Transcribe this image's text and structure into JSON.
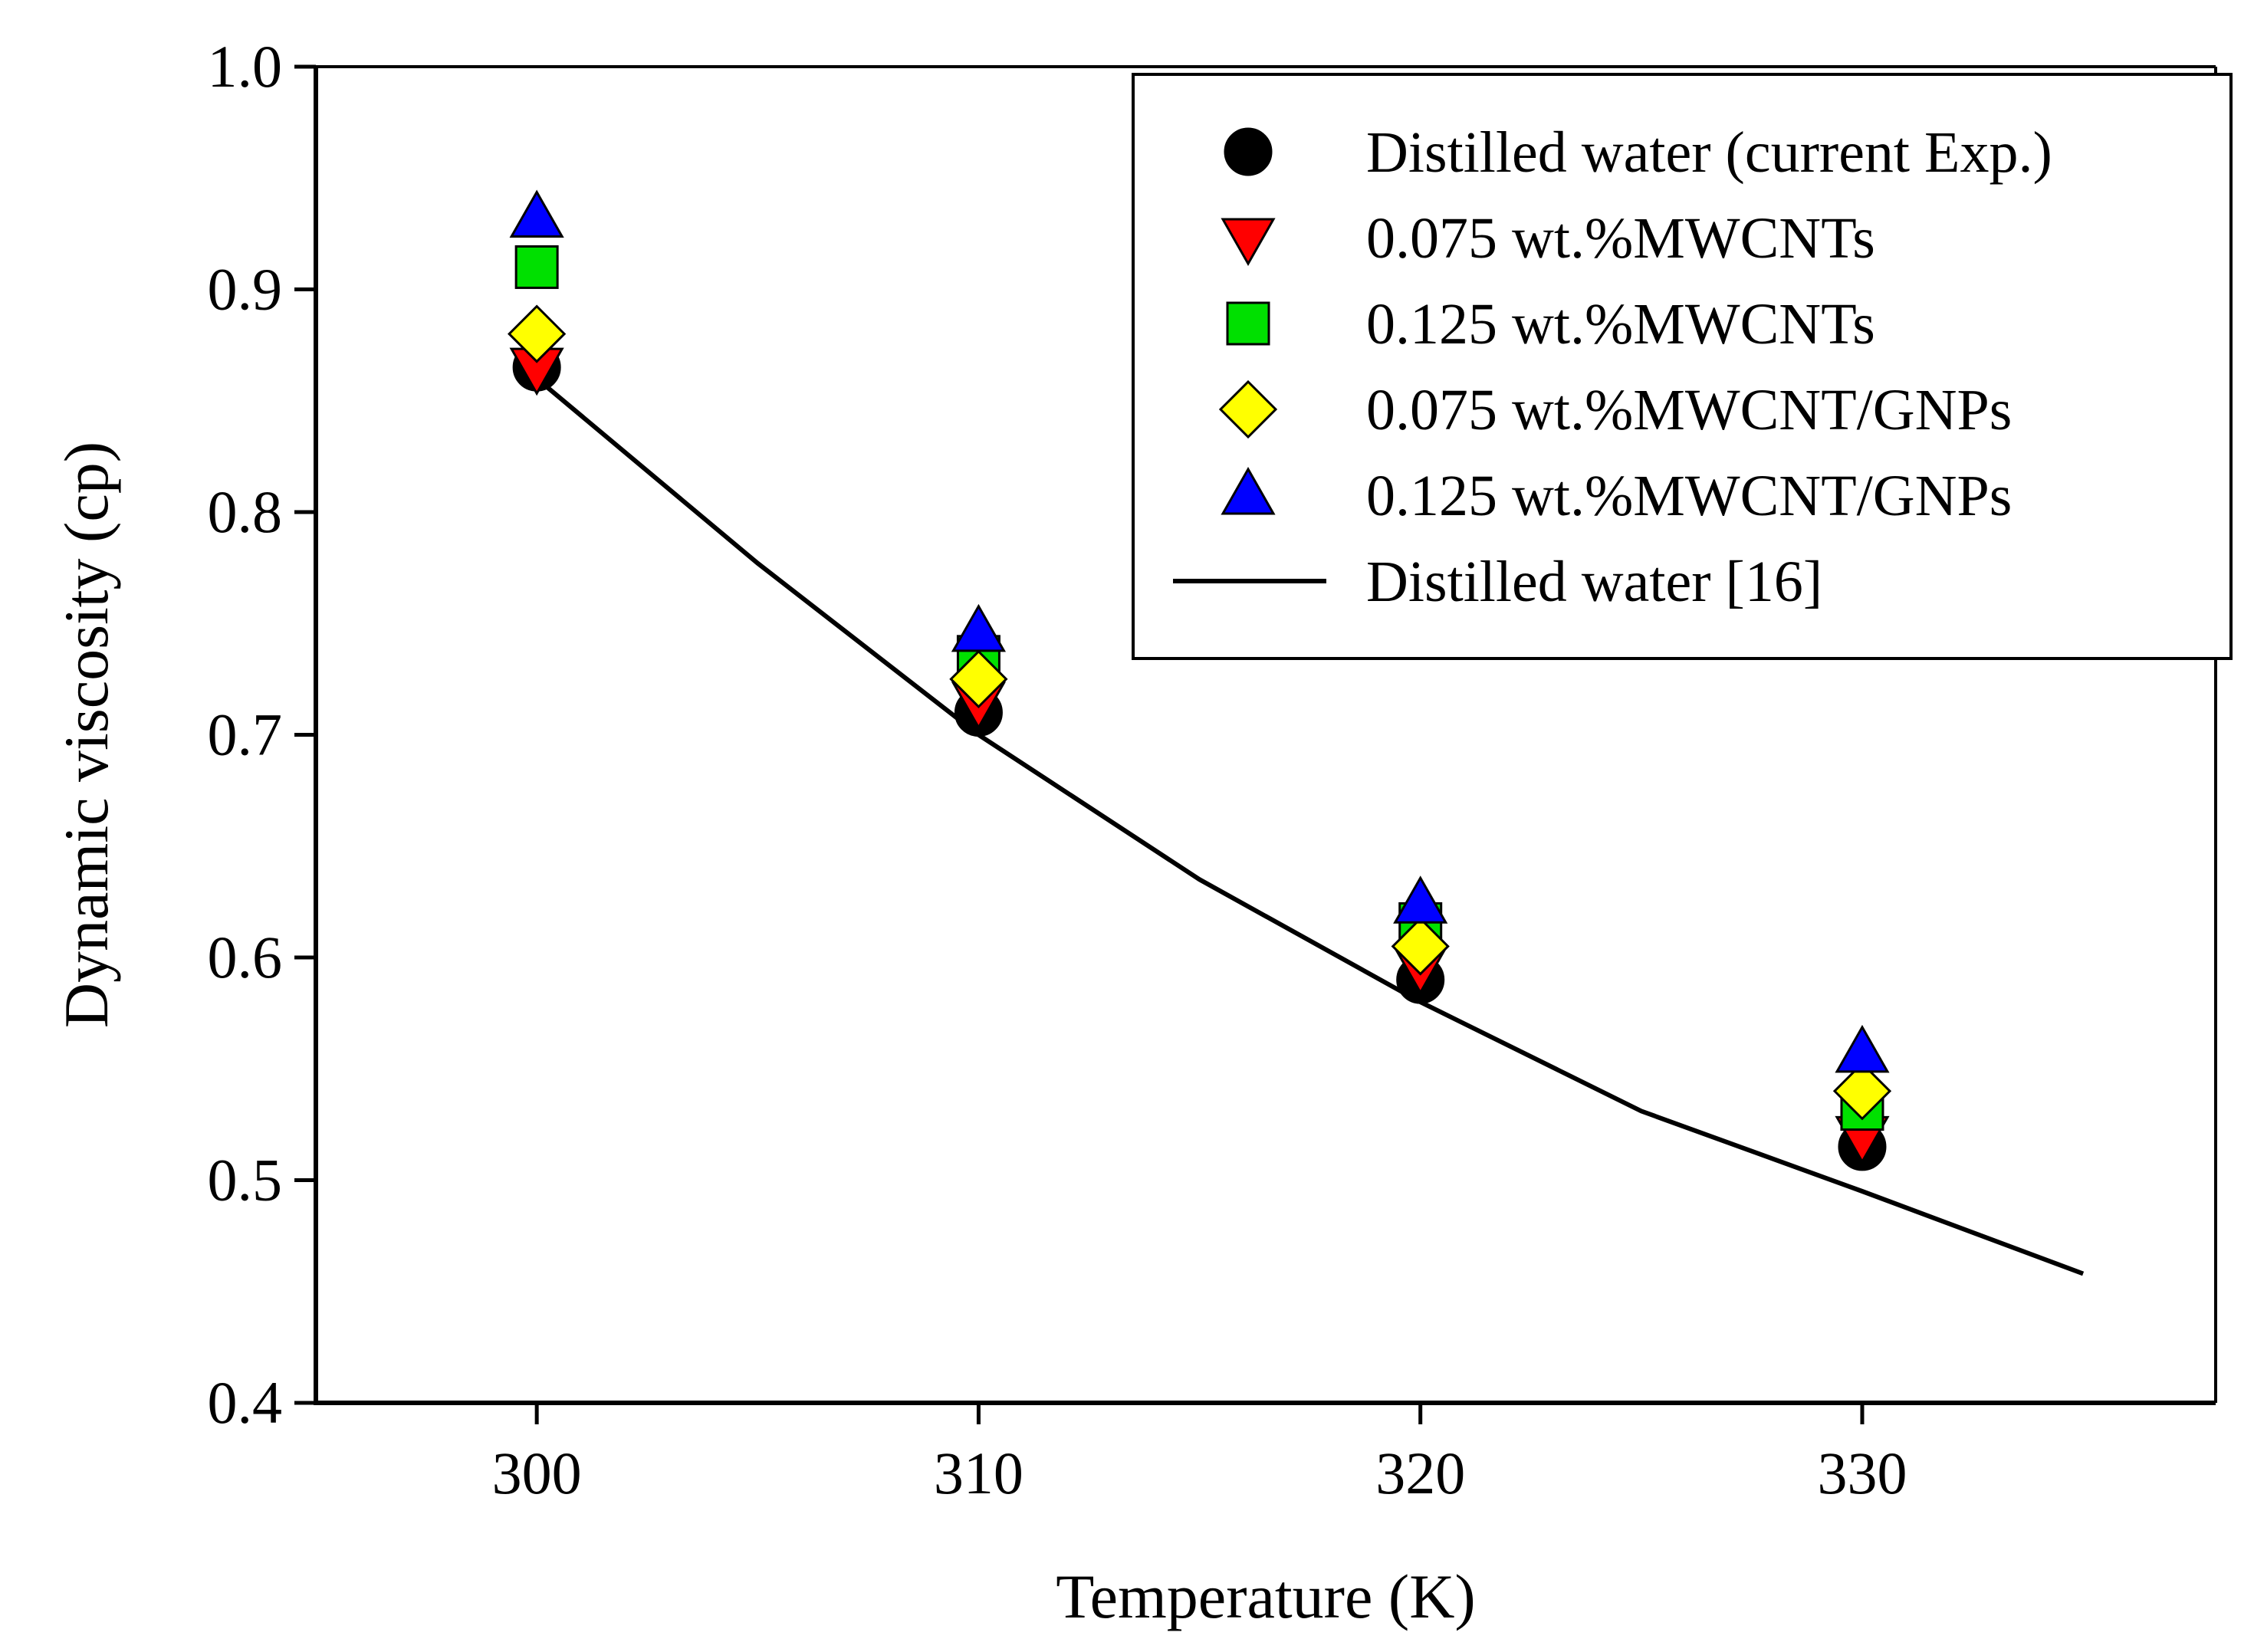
{
  "chart_data": {
    "type": "scatter",
    "title": "",
    "xlabel": "Temperature (K)",
    "ylabel": "Dynamic viscosity (cp)",
    "xlim": [
      295,
      338
    ],
    "ylim": [
      0.4,
      1.0
    ],
    "x_ticks": [
      300,
      310,
      320,
      330
    ],
    "x_tick_labels": [
      "300",
      "310",
      "320",
      "330"
    ],
    "y_ticks": [
      0.4,
      0.5,
      0.6,
      0.7,
      0.8,
      0.9,
      1.0
    ],
    "y_tick_labels": [
      "0.4",
      "0.5",
      "0.6",
      "0.7",
      "0.8",
      "0.9",
      "1.0"
    ],
    "grid": false,
    "legend_position": "top-right",
    "series": [
      {
        "name": "Distilled water (current Exp.)",
        "marker": "circle",
        "color": "#000000",
        "points": [
          [
            300,
            0.865
          ],
          [
            310,
            0.71
          ],
          [
            320,
            0.59
          ],
          [
            330,
            0.515
          ]
        ]
      },
      {
        "name": "0.075 wt.%MWCNTs",
        "marker": "triangle-down",
        "color": "#ff0000",
        "points": [
          [
            300,
            0.865
          ],
          [
            310,
            0.715
          ],
          [
            320,
            0.596
          ],
          [
            330,
            0.52
          ]
        ]
      },
      {
        "name": "0.125 wt.%MWCNTs",
        "marker": "square",
        "color": "#00e000",
        "points": [
          [
            300,
            0.91
          ],
          [
            310,
            0.735
          ],
          [
            320,
            0.615
          ],
          [
            330,
            0.532
          ]
        ]
      },
      {
        "name": "0.075 wt.%MWCNT/GNPs",
        "marker": "diamond",
        "color": "#ffff00",
        "points": [
          [
            300,
            0.88
          ],
          [
            310,
            0.725
          ],
          [
            320,
            0.605
          ],
          [
            330,
            0.54
          ]
        ]
      },
      {
        "name": "0.125 wt.%MWCNT/GNPs",
        "marker": "triangle-up",
        "color": "#0000ff",
        "points": [
          [
            300,
            0.932
          ],
          [
            310,
            0.746
          ],
          [
            320,
            0.624
          ],
          [
            330,
            0.557
          ]
        ]
      },
      {
        "name": "Distilled water [16]",
        "marker": "line",
        "color": "#000000",
        "points": [
          [
            300,
            0.86
          ],
          [
            305,
            0.777
          ],
          [
            310,
            0.7
          ],
          [
            315,
            0.635
          ],
          [
            320,
            0.58
          ],
          [
            325,
            0.531
          ],
          [
            330,
            0.495
          ],
          [
            335,
            0.458
          ]
        ]
      }
    ]
  }
}
